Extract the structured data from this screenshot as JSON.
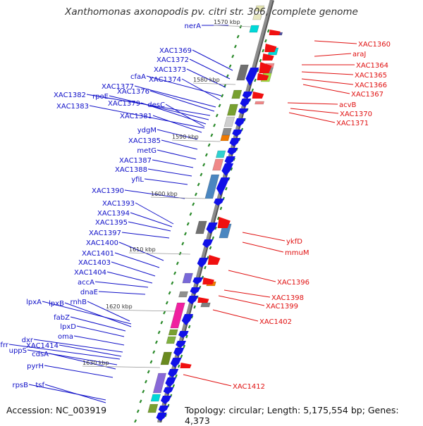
{
  "title": "Xanthomonas axonopodis pv. citri str. 306, complete genome",
  "accession": "Accession: NC_003919",
  "topology": "Topology: circular; Length: 5,175,554 bp; Genes: 4,373",
  "colors": {
    "forward_label": "#1010c8",
    "reverse_label": "#e01010",
    "backbone": "#8c8c8c",
    "tick": "#2a8a2a"
  },
  "kbp_marks": [
    "1570 kbp",
    "1580 kbp",
    "1590 kbp",
    "1600 kbp",
    "1610 kbp",
    "1620 kbp",
    "1630 kbp"
  ],
  "forward_genes": [
    "nerA",
    "XAC1369",
    "XAC1372",
    "XAC1373",
    "cfaA",
    "XAC1374",
    "XAC1377",
    "XAC1376",
    "XAC1382",
    "rpoE",
    "XAC1379",
    "desC",
    "XAC1383",
    "XAC1381",
    "ydgM",
    "XAC1385",
    "metG",
    "XAC1387",
    "XAC1388",
    "yfiL",
    "XAC1390",
    "XAC1393",
    "XAC1394",
    "XAC1395",
    "XAC1397",
    "XAC1400",
    "XAC1401",
    "XAC1403",
    "XAC1404",
    "accA",
    "dnaE",
    "lpxA",
    "lpxB",
    "rnhB",
    "fabZ",
    "lpxD",
    "oma",
    "dxr",
    "XAC1414",
    "frr",
    "uppS",
    "cdsA",
    "pyrH",
    "rpsB",
    "tsf"
  ],
  "reverse_genes": [
    "XAC1360",
    "araJ",
    "XAC1364",
    "XAC1365",
    "XAC1366",
    "XAC1367",
    "acvB",
    "XAC1370",
    "XAC1371",
    "ykfD",
    "mmuM",
    "XAC1396",
    "XAC1398",
    "XAC1399",
    "XAC1402",
    "XAC1412"
  ]
}
